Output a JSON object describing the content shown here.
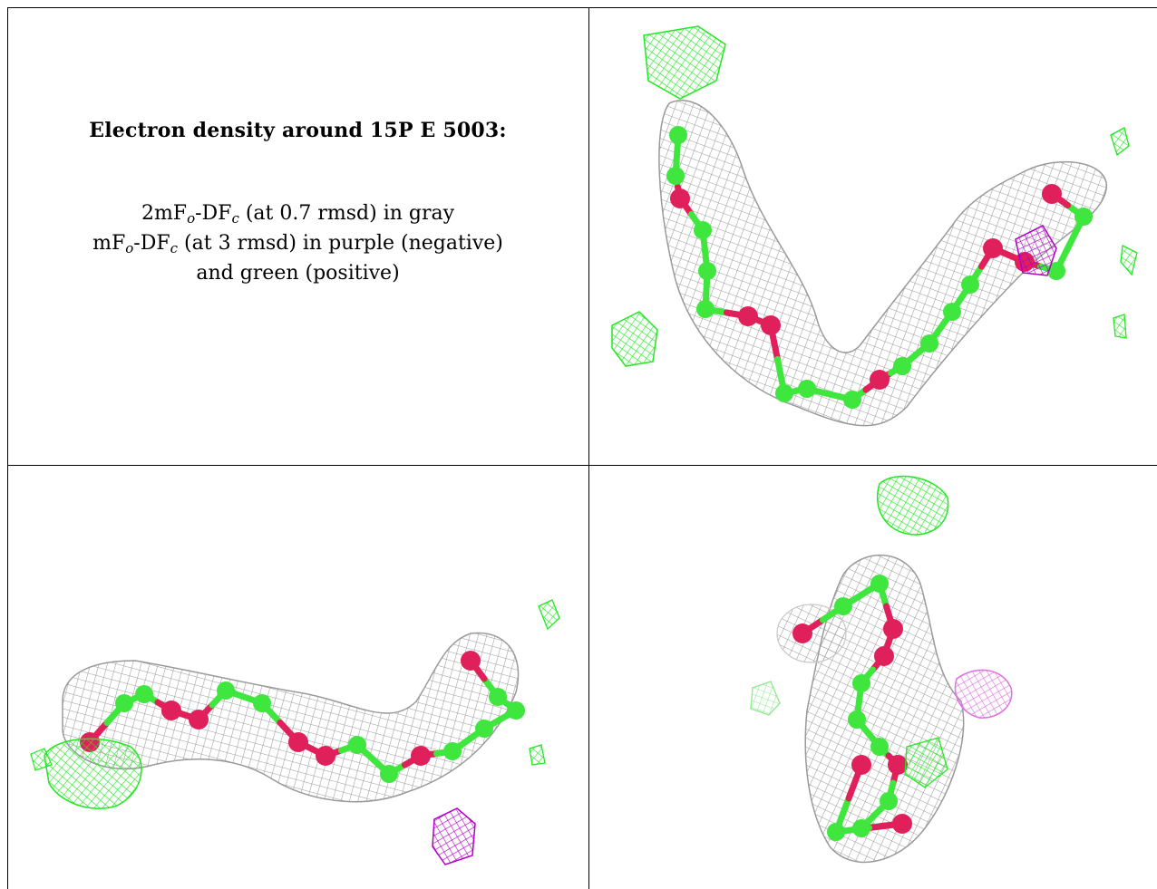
{
  "caption": {
    "title": "Electron density around 15P E 5003:",
    "line1": {
      "prefix": "2mF",
      "sub1": "o",
      "mid": "-DF",
      "sub2": "c",
      "suffix": " (at 0.7 rmsd) in gray"
    },
    "line2": {
      "prefix": "mF",
      "sub1": "o",
      "mid": "-DF",
      "sub2": "c",
      "suffix": " (at 3 rmsd) in purple (negative)"
    },
    "line3": "and green (positive)"
  },
  "colors": {
    "mesh_2fofc": "#9a9a9a",
    "mesh_positive": "#22e822",
    "mesh_negative": "#b000c8",
    "atom_carbon": "#3ee63e",
    "atom_oxygen": "#e0205a",
    "border": "#000000"
  },
  "panels": [
    {
      "view": "top-right"
    },
    {
      "view": "bottom-left"
    },
    {
      "view": "bottom-right"
    }
  ]
}
